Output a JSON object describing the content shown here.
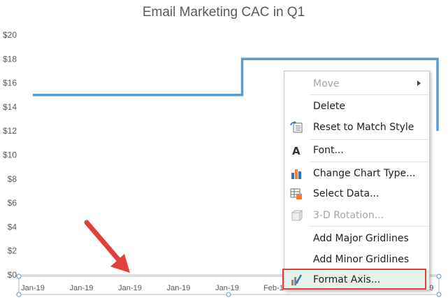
{
  "chart_data": {
    "type": "line",
    "title": "Email Marketing CAC in Q1",
    "xlabel": "",
    "ylabel": "",
    "ylim": [
      0,
      20
    ],
    "y_ticks": [
      "$0",
      "$2",
      "$4",
      "$6",
      "$8",
      "$10",
      "$12",
      "$14",
      "$16",
      "$18",
      "$20"
    ],
    "x_ticks": [
      "Jan-19",
      "Jan-19",
      "Jan-19",
      "Jan-19",
      "Jan-19",
      "Feb-19",
      "Feb-19",
      "Feb-19",
      "Feb-19"
    ],
    "series": [
      {
        "color": "#5b9bd5",
        "x": [
          "2019-01-01",
          "2019-01-31",
          "2019-01-31",
          "2019-02-28",
          "2019-02-28"
        ],
        "values": [
          15,
          15,
          18,
          18,
          12
        ]
      }
    ],
    "grid": false,
    "step": true
  },
  "context_menu": {
    "items": [
      {
        "label": "Move",
        "icon": "",
        "disabled": true,
        "submenu": true
      },
      {
        "label": "Delete",
        "icon": "",
        "disabled": false
      },
      {
        "label": "Reset to Match Style",
        "icon": "reset-style-icon",
        "disabled": false
      },
      {
        "label": "Font...",
        "icon": "font-icon",
        "disabled": false
      },
      {
        "label": "Change Chart Type...",
        "icon": "chart-type-icon",
        "disabled": false
      },
      {
        "label": "Select Data...",
        "icon": "select-data-icon",
        "disabled": false
      },
      {
        "label": "3-D Rotation...",
        "icon": "3d-rotation-icon",
        "disabled": true
      },
      {
        "label": "Add Major Gridlines",
        "icon": "",
        "disabled": false
      },
      {
        "label": "Add Minor Gridlines",
        "icon": "",
        "disabled": false
      },
      {
        "label": "Format Axis...",
        "icon": "format-axis-icon",
        "disabled": false,
        "highlighted": true
      }
    ]
  },
  "colors": {
    "line": "#5b9bd5",
    "annotation_arrow": "#e0413a",
    "highlight_border": "#e0413a",
    "highlight_fill": "#e6f2e9"
  }
}
